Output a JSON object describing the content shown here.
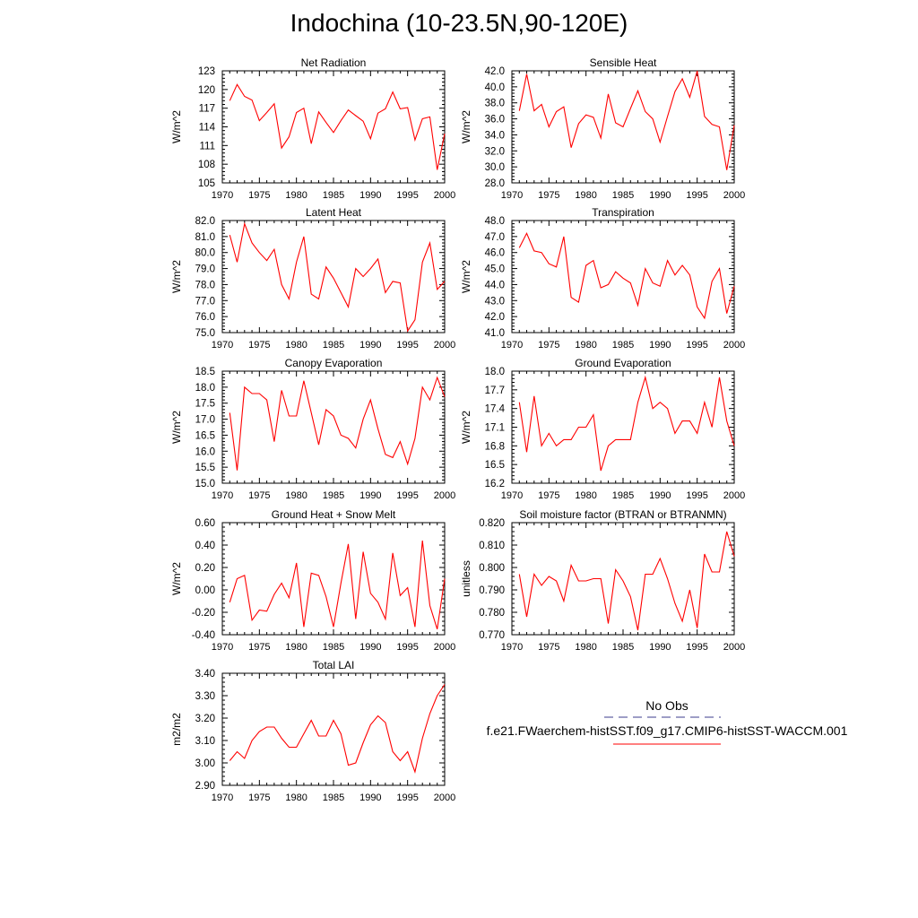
{
  "title": "Indochina (10-23.5N,90-120E)",
  "legend": {
    "title": "No Obs",
    "series_label": "f.e21.FWaerchem-histSST.f09_g17.CMIP6-histSST-WACCM.001",
    "obs_color": "#3c3c8c",
    "model_color": "#ff0000"
  },
  "x_tick_labels": [
    "1970",
    "1975",
    "1980",
    "1985",
    "1990",
    "1995",
    "2000"
  ],
  "chart_data": [
    {
      "type": "line",
      "title": "Net Radiation",
      "ylabel": "W/m^2",
      "xlim": [
        1970,
        2000
      ],
      "ylim": [
        105,
        123
      ],
      "yticks": [
        "105",
        "108",
        "111",
        "114",
        "117",
        "120",
        "123"
      ],
      "x": [
        1971,
        1972,
        1973,
        1974,
        1975,
        1976,
        1977,
        1978,
        1979,
        1980,
        1981,
        1982,
        1983,
        1984,
        1985,
        1986,
        1987,
        1988,
        1989,
        1990,
        1991,
        1992,
        1993,
        1994,
        1995,
        1996,
        1997,
        1998,
        1999,
        2000
      ],
      "series": [
        {
          "values": [
            118.2,
            120.8,
            118.9,
            118.3,
            115.0,
            116.3,
            117.7,
            110.6,
            112.4,
            116.3,
            117.0,
            111.3,
            116.4,
            114.7,
            113.1,
            115.0,
            116.7,
            115.8,
            114.9,
            112.1,
            116.2,
            116.9,
            119.6,
            116.9,
            117.1,
            111.9,
            115.3,
            115.6,
            107.1,
            112.9
          ]
        }
      ]
    },
    {
      "type": "line",
      "title": "Sensible Heat",
      "ylabel": "W/m^2",
      "xlim": [
        1970,
        2000
      ],
      "ylim": [
        28.0,
        42.0
      ],
      "yticks": [
        "28.0",
        "30.0",
        "32.0",
        "34.0",
        "36.0",
        "38.0",
        "40.0",
        "42.0"
      ],
      "x": [
        1971,
        1972,
        1973,
        1974,
        1975,
        1976,
        1977,
        1978,
        1979,
        1980,
        1981,
        1982,
        1983,
        1984,
        1985,
        1986,
        1987,
        1988,
        1989,
        1990,
        1991,
        1992,
        1993,
        1994,
        1995,
        1996,
        1997,
        1998,
        1999,
        2000
      ],
      "series": [
        {
          "values": [
            37.0,
            41.6,
            37.0,
            37.8,
            35.0,
            36.9,
            37.5,
            32.4,
            35.4,
            36.5,
            36.2,
            33.6,
            39.1,
            35.5,
            35.0,
            37.3,
            39.5,
            36.9,
            36.0,
            33.1,
            36.3,
            39.4,
            41.0,
            38.7,
            42.0,
            36.3,
            35.3,
            35.0,
            29.6,
            35.2
          ]
        }
      ]
    },
    {
      "type": "line",
      "title": "Latent Heat",
      "ylabel": "W/m^2",
      "xlim": [
        1970,
        2000
      ],
      "ylim": [
        75.0,
        82.0
      ],
      "yticks": [
        "75.0",
        "76.0",
        "77.0",
        "78.0",
        "79.0",
        "80.0",
        "81.0",
        "82.0"
      ],
      "x": [
        1971,
        1972,
        1973,
        1974,
        1975,
        1976,
        1977,
        1978,
        1979,
        1980,
        1981,
        1982,
        1983,
        1984,
        1985,
        1986,
        1987,
        1988,
        1989,
        1990,
        1991,
        1992,
        1993,
        1994,
        1995,
        1996,
        1997,
        1998,
        1999,
        2000
      ],
      "series": [
        {
          "values": [
            81.1,
            79.4,
            81.8,
            80.6,
            80.0,
            79.5,
            80.2,
            78.0,
            77.1,
            79.4,
            81.0,
            77.4,
            77.1,
            79.1,
            78.4,
            77.5,
            76.6,
            79.0,
            78.5,
            79.0,
            79.6,
            77.5,
            78.2,
            78.1,
            75.1,
            75.8,
            79.4,
            80.6,
            77.7,
            78.2
          ]
        }
      ]
    },
    {
      "type": "line",
      "title": "Transpiration",
      "ylabel": "W/m^2",
      "xlim": [
        1970,
        2000
      ],
      "ylim": [
        41.0,
        48.0
      ],
      "yticks": [
        "41.0",
        "42.0",
        "43.0",
        "44.0",
        "45.0",
        "46.0",
        "47.0",
        "48.0"
      ],
      "x": [
        1971,
        1972,
        1973,
        1974,
        1975,
        1976,
        1977,
        1978,
        1979,
        1980,
        1981,
        1982,
        1983,
        1984,
        1985,
        1986,
        1987,
        1988,
        1989,
        1990,
        1991,
        1992,
        1993,
        1994,
        1995,
        1996,
        1997,
        1998,
        1999,
        2000
      ],
      "series": [
        {
          "values": [
            46.3,
            47.2,
            46.1,
            46.0,
            45.3,
            45.1,
            47.0,
            43.2,
            42.9,
            45.2,
            45.5,
            43.8,
            44.0,
            44.8,
            44.4,
            44.1,
            42.7,
            45.0,
            44.1,
            43.9,
            45.5,
            44.6,
            45.2,
            44.6,
            42.6,
            41.9,
            44.2,
            45.0,
            42.2,
            43.9
          ]
        }
      ]
    },
    {
      "type": "line",
      "title": "Canopy Evaporation",
      "ylabel": "W/m^2",
      "xlim": [
        1970,
        2000
      ],
      "ylim": [
        15.0,
        18.5
      ],
      "yticks": [
        "15.0",
        "15.5",
        "16.0",
        "16.5",
        "17.0",
        "17.5",
        "18.0",
        "18.5"
      ],
      "x": [
        1971,
        1972,
        1973,
        1974,
        1975,
        1976,
        1977,
        1978,
        1979,
        1980,
        1981,
        1982,
        1983,
        1984,
        1985,
        1986,
        1987,
        1988,
        1989,
        1990,
        1991,
        1992,
        1993,
        1994,
        1995,
        1996,
        1997,
        1998,
        1999,
        2000
      ],
      "series": [
        {
          "values": [
            17.2,
            15.4,
            18.0,
            17.8,
            17.8,
            17.6,
            16.3,
            17.9,
            17.1,
            17.1,
            18.2,
            17.2,
            16.2,
            17.3,
            17.1,
            16.5,
            16.4,
            16.1,
            17.0,
            17.6,
            16.7,
            15.9,
            15.8,
            16.3,
            15.6,
            16.4,
            18.0,
            17.6,
            18.3,
            17.7
          ]
        }
      ]
    },
    {
      "type": "line",
      "title": "Ground Evaporation",
      "ylabel": "W/m^2",
      "xlim": [
        1970,
        2000
      ],
      "ylim": [
        16.2,
        18.0
      ],
      "yticks": [
        "16.2",
        "16.5",
        "16.8",
        "17.1",
        "17.4",
        "17.7",
        "18.0"
      ],
      "x": [
        1971,
        1972,
        1973,
        1974,
        1975,
        1976,
        1977,
        1978,
        1979,
        1980,
        1981,
        1982,
        1983,
        1984,
        1985,
        1986,
        1987,
        1988,
        1989,
        1990,
        1991,
        1992,
        1993,
        1994,
        1995,
        1996,
        1997,
        1998,
        1999,
        2000
      ],
      "series": [
        {
          "values": [
            17.5,
            16.7,
            17.6,
            16.8,
            17.0,
            16.8,
            16.9,
            16.9,
            17.1,
            17.1,
            17.3,
            16.4,
            16.8,
            16.9,
            16.9,
            16.9,
            17.5,
            17.9,
            17.4,
            17.5,
            17.4,
            17.0,
            17.2,
            17.2,
            17.0,
            17.5,
            17.1,
            17.9,
            17.2,
            16.8
          ]
        }
      ]
    },
    {
      "type": "line",
      "title": "Ground Heat + Snow Melt",
      "ylabel": "W/m^2",
      "xlim": [
        1970,
        2000
      ],
      "ylim": [
        -0.4,
        0.6
      ],
      "yticks": [
        "-0.40",
        "-0.20",
        "0.00",
        "0.20",
        "0.40",
        "0.60"
      ],
      "x": [
        1971,
        1972,
        1973,
        1974,
        1975,
        1976,
        1977,
        1978,
        1979,
        1980,
        1981,
        1982,
        1983,
        1984,
        1985,
        1986,
        1987,
        1988,
        1989,
        1990,
        1991,
        1992,
        1993,
        1994,
        1995,
        1996,
        1997,
        1998,
        1999,
        2000
      ],
      "series": [
        {
          "values": [
            -0.11,
            0.1,
            0.13,
            -0.27,
            -0.18,
            -0.19,
            -0.04,
            0.06,
            -0.07,
            0.24,
            -0.33,
            0.15,
            0.13,
            -0.06,
            -0.33,
            0.06,
            0.41,
            -0.26,
            0.34,
            -0.03,
            -0.11,
            -0.26,
            0.33,
            -0.05,
            0.02,
            -0.33,
            0.44,
            -0.14,
            -0.35,
            0.1
          ]
        }
      ]
    },
    {
      "type": "line",
      "title": "Soil moisture factor (BTRAN or BTRANMN)",
      "ylabel": "unitless",
      "xlim": [
        1970,
        2000
      ],
      "ylim": [
        0.77,
        0.82
      ],
      "yticks": [
        "0.770",
        "0.780",
        "0.790",
        "0.800",
        "0.810",
        "0.820"
      ],
      "x": [
        1971,
        1972,
        1973,
        1974,
        1975,
        1976,
        1977,
        1978,
        1979,
        1980,
        1981,
        1982,
        1983,
        1984,
        1985,
        1986,
        1987,
        1988,
        1989,
        1990,
        1991,
        1992,
        1993,
        1994,
        1995,
        1996,
        1997,
        1998,
        1999,
        2000
      ],
      "series": [
        {
          "values": [
            0.797,
            0.778,
            0.797,
            0.792,
            0.796,
            0.794,
            0.785,
            0.801,
            0.794,
            0.794,
            0.795,
            0.795,
            0.775,
            0.799,
            0.794,
            0.787,
            0.772,
            0.797,
            0.797,
            0.804,
            0.795,
            0.784,
            0.776,
            0.79,
            0.773,
            0.806,
            0.798,
            0.798,
            0.816,
            0.805
          ]
        }
      ]
    },
    {
      "type": "line",
      "title": "Total LAI",
      "ylabel": "m2/m2",
      "xlim": [
        1970,
        2000
      ],
      "ylim": [
        2.9,
        3.4
      ],
      "yticks": [
        "2.90",
        "3.00",
        "3.10",
        "3.20",
        "3.30",
        "3.40"
      ],
      "x": [
        1971,
        1972,
        1973,
        1974,
        1975,
        1976,
        1977,
        1978,
        1979,
        1980,
        1981,
        1982,
        1983,
        1984,
        1985,
        1986,
        1987,
        1988,
        1989,
        1990,
        1991,
        1992,
        1993,
        1994,
        1995,
        1996,
        1997,
        1998,
        1999,
        2000
      ],
      "series": [
        {
          "values": [
            3.01,
            3.05,
            3.02,
            3.1,
            3.14,
            3.16,
            3.16,
            3.11,
            3.07,
            3.07,
            3.13,
            3.19,
            3.12,
            3.12,
            3.19,
            3.13,
            2.99,
            3.0,
            3.09,
            3.17,
            3.21,
            3.18,
            3.05,
            3.01,
            3.05,
            2.96,
            3.11,
            3.22,
            3.3,
            3.35
          ]
        }
      ]
    }
  ]
}
